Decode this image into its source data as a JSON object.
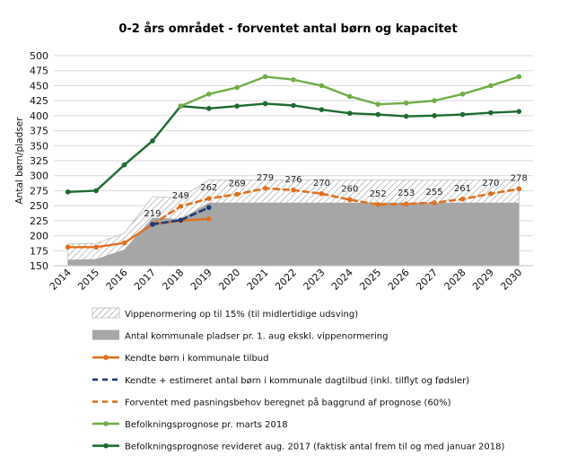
{
  "chart_data": {
    "type": "line",
    "title": "0-2 års området - forventet antal børn og kapacitet",
    "ylabel": "Antal børn/pladser",
    "xlabel": "",
    "ylim": [
      150,
      500
    ],
    "yticks": [
      150,
      175,
      200,
      225,
      250,
      275,
      300,
      325,
      350,
      375,
      400,
      425,
      450,
      475,
      500
    ],
    "grid": true,
    "legend_position": "bottom",
    "categories": [
      "2014",
      "2015",
      "2016",
      "2017",
      "2018",
      "2019",
      "2020",
      "2021",
      "2022",
      "2023",
      "2024",
      "2025",
      "2026",
      "2027",
      "2028",
      "2029",
      "2030"
    ],
    "series": [
      {
        "name": "Vippenormering op til 15% (til midlertidige udsving)",
        "kind": "hatched-area",
        "color": "#777777",
        "values": [
          186,
          187,
          204,
          265,
          263,
          293,
          293,
          293,
          293,
          293,
          293,
          293,
          293,
          293,
          293,
          293,
          293
        ]
      },
      {
        "name": "Antal kommunale pladser pr. 1. aug ekskl. vippenormering",
        "kind": "area",
        "color": "#a6a6a6",
        "values": [
          160,
          161,
          177,
          230,
          228,
          255,
          255,
          255,
          255,
          255,
          255,
          255,
          255,
          255,
          255,
          255,
          255
        ]
      },
      {
        "name": "Kendte børn i kommunale tilbud",
        "kind": "line",
        "color": "#e07020",
        "dash": false,
        "values": [
          181,
          181,
          188,
          219,
          225,
          228,
          null,
          null,
          null,
          null,
          null,
          null,
          null,
          null,
          null,
          null,
          null
        ]
      },
      {
        "name": "Kendte + estimeret antal børn i kommunale dagtilbud (inkl. tilflyt og fødsler)",
        "kind": "line",
        "color": "#1f3a78",
        "dash": true,
        "values": [
          null,
          null,
          null,
          219,
          226,
          247,
          null,
          null,
          null,
          null,
          null,
          null,
          null,
          null,
          null,
          null,
          null
        ]
      },
      {
        "name": "Forventet med pasningsbehov beregnet på baggrund af prognose (60%)",
        "kind": "line",
        "color": "#e07020",
        "dash": true,
        "values": [
          null,
          null,
          null,
          219,
          249,
          262,
          269,
          279,
          276,
          270,
          260,
          252,
          253,
          255,
          261,
          270,
          278
        ]
      },
      {
        "name": "Befolkningsprognose pr. marts 2018",
        "kind": "line",
        "color": "#70ad47",
        "dash": false,
        "values": [
          null,
          null,
          null,
          null,
          416,
          436,
          447,
          465,
          460,
          450,
          432,
          419,
          421,
          425,
          436,
          450,
          465
        ]
      },
      {
        "name": "Befolkningsprognose revideret aug. 2017 (faktisk antal frem til og med januar 2018)",
        "kind": "line",
        "color": "#1e6b32",
        "dash": false,
        "values": [
          273,
          275,
          318,
          358,
          416,
          412,
          416,
          420,
          417,
          410,
          404,
          402,
          399,
          400,
          402,
          405,
          407
        ]
      }
    ],
    "data_labels": {
      "series_index": 4,
      "labels": [
        {
          "x": "2017",
          "text": "219"
        },
        {
          "x": "2018",
          "text": "249"
        },
        {
          "x": "2019",
          "text": "262"
        },
        {
          "x": "2020",
          "text": "269"
        },
        {
          "x": "2021",
          "text": "279"
        },
        {
          "x": "2022",
          "text": "276"
        },
        {
          "x": "2023",
          "text": "270"
        },
        {
          "x": "2024",
          "text": "260"
        },
        {
          "x": "2025",
          "text": "252"
        },
        {
          "x": "2026",
          "text": "253"
        },
        {
          "x": "2027",
          "text": "255"
        },
        {
          "x": "2028",
          "text": "261"
        },
        {
          "x": "2029",
          "text": "270"
        },
        {
          "x": "2030",
          "text": "278"
        }
      ]
    }
  }
}
